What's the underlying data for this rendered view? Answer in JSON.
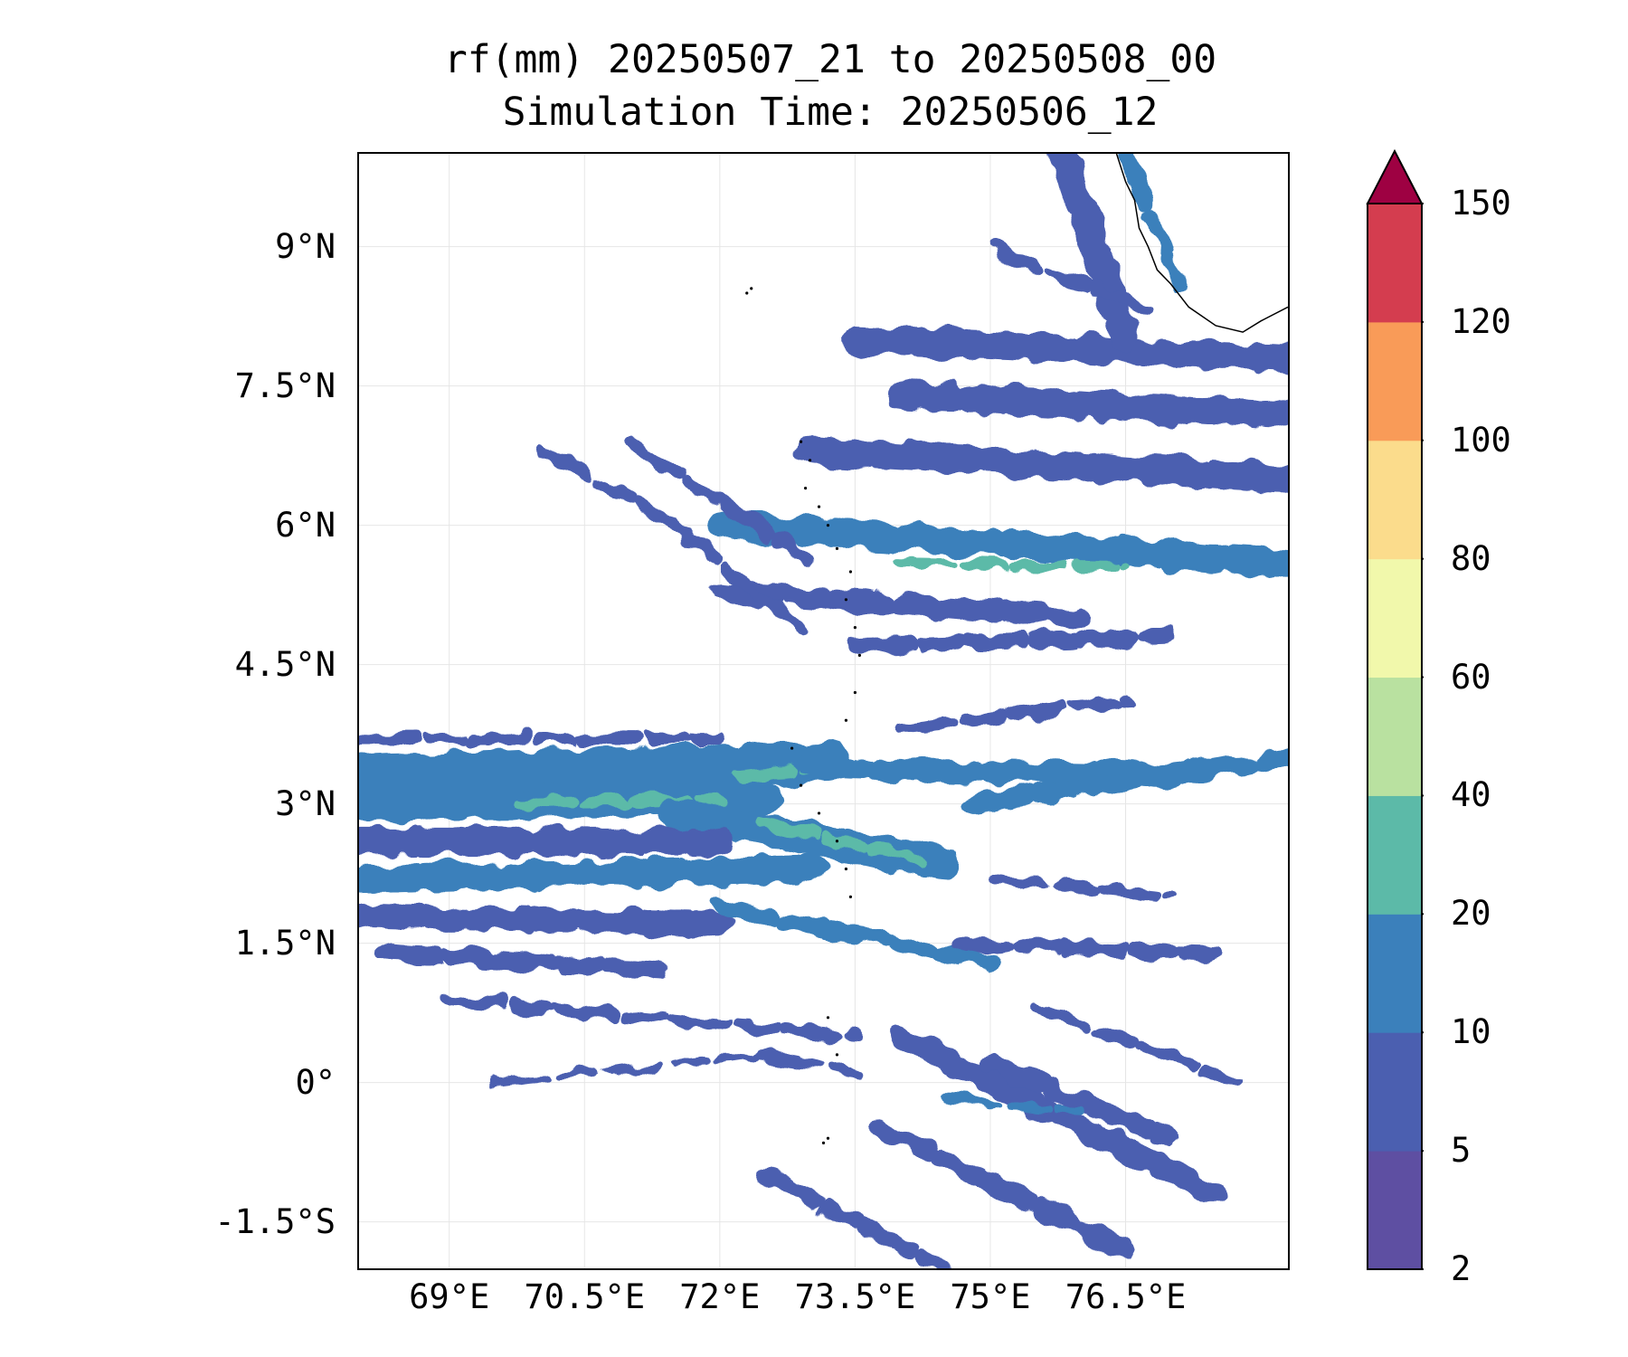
{
  "title": {
    "line1": "rf(mm) 20250507_21 to 20250508_00",
    "line2": "Simulation Time: 20250506_12"
  },
  "map": {
    "extent": {
      "lon_min": 68.0,
      "lon_max": 78.3,
      "lat_min": -2.0,
      "lat_max": 10.0
    },
    "x_ticks": [
      {
        "lon": 69.0,
        "label": "69°E"
      },
      {
        "lon": 70.5,
        "label": "70.5°E"
      },
      {
        "lon": 72.0,
        "label": "72°E"
      },
      {
        "lon": 73.5,
        "label": "73.5°E"
      },
      {
        "lon": 75.0,
        "label": "75°E"
      },
      {
        "lon": 76.5,
        "label": "76.5°E"
      }
    ],
    "y_ticks": [
      {
        "lat": 9.0,
        "label": "9°N"
      },
      {
        "lat": 7.5,
        "label": "7.5°N"
      },
      {
        "lat": 6.0,
        "label": "6°N"
      },
      {
        "lat": 4.5,
        "label": "4.5°N"
      },
      {
        "lat": 3.0,
        "label": "3°N"
      },
      {
        "lat": 1.5,
        "label": "1.5°N"
      },
      {
        "lat": 0.0,
        "label": "0°"
      },
      {
        "lat": -1.5,
        "label": "-1.5°S"
      }
    ],
    "gridlines": true,
    "coastline_color": "#000000",
    "rain_bands": [
      {
        "lon1": 68.0,
        "lat1": 3.3,
        "lon2": 73.2,
        "lat2": 3.45,
        "level": 2,
        "width": 0.45
      },
      {
        "lon1": 68.0,
        "lat1": 3.0,
        "lon2": 72.5,
        "lat2": 3.05,
        "level": 2,
        "width": 0.35
      },
      {
        "lon1": 69.8,
        "lat1": 3.0,
        "lon2": 72.0,
        "lat2": 3.05,
        "level": 3,
        "width": 0.12
      },
      {
        "lon1": 72.2,
        "lat1": 3.3,
        "lon2": 73.8,
        "lat2": 3.4,
        "level": 3,
        "width": 0.12
      },
      {
        "lon1": 71.5,
        "lat1": 2.9,
        "lon2": 74.5,
        "lat2": 2.35,
        "level": 2,
        "width": 0.35
      },
      {
        "lon1": 72.5,
        "lat1": 2.8,
        "lon2": 74.2,
        "lat2": 2.4,
        "level": 3,
        "width": 0.12
      },
      {
        "lon1": 73.0,
        "lat1": 3.4,
        "lon2": 77.0,
        "lat2": 3.3,
        "level": 2,
        "width": 0.25
      },
      {
        "lon1": 74.8,
        "lat1": 3.0,
        "lon2": 78.3,
        "lat2": 3.5,
        "level": 2,
        "width": 0.2
      },
      {
        "lon1": 68.0,
        "lat1": 2.2,
        "lon2": 73.0,
        "lat2": 2.3,
        "level": 2,
        "width": 0.3
      },
      {
        "lon1": 68.0,
        "lat1": 2.6,
        "lon2": 72.0,
        "lat2": 2.6,
        "level": 1,
        "width": 0.3
      },
      {
        "lon1": 68.0,
        "lat1": 1.8,
        "lon2": 72.0,
        "lat2": 1.7,
        "level": 1,
        "width": 0.25
      },
      {
        "lon1": 72.0,
        "lat1": 1.9,
        "lon2": 75.0,
        "lat2": 1.3,
        "level": 2,
        "width": 0.18
      },
      {
        "lon1": 68.3,
        "lat1": 1.4,
        "lon2": 71.5,
        "lat2": 1.2,
        "level": 1,
        "width": 0.18
      },
      {
        "lon1": 69.0,
        "lat1": 0.9,
        "lon2": 73.5,
        "lat2": 0.5,
        "level": 1,
        "width": 0.12
      },
      {
        "lon1": 69.5,
        "lat1": 0.0,
        "lon2": 72.5,
        "lat2": 0.3,
        "level": 1,
        "width": 0.08
      },
      {
        "lon1": 74.6,
        "lat1": 1.5,
        "lon2": 77.5,
        "lat2": 1.4,
        "level": 1,
        "width": 0.15
      },
      {
        "lon1": 75.0,
        "lat1": 2.2,
        "lon2": 77.0,
        "lat2": 2.0,
        "level": 1,
        "width": 0.12
      },
      {
        "lon1": 74.0,
        "lat1": 3.8,
        "lon2": 76.5,
        "lat2": 4.1,
        "level": 1,
        "width": 0.12
      },
      {
        "lon1": 68.0,
        "lat1": 3.7,
        "lon2": 72.0,
        "lat2": 3.7,
        "level": 1,
        "width": 0.12
      },
      {
        "lon1": 72.0,
        "lat1": 6.0,
        "lon2": 78.3,
        "lat2": 5.6,
        "level": 2,
        "width": 0.3
      },
      {
        "lon1": 74.0,
        "lat1": 5.6,
        "lon2": 76.5,
        "lat2": 5.55,
        "level": 3,
        "width": 0.1
      },
      {
        "lon1": 73.0,
        "lat1": 6.8,
        "lon2": 78.3,
        "lat2": 6.5,
        "level": 1,
        "width": 0.3
      },
      {
        "lon1": 74.0,
        "lat1": 7.4,
        "lon2": 78.3,
        "lat2": 7.2,
        "level": 1,
        "width": 0.3
      },
      {
        "lon1": 73.5,
        "lat1": 8.0,
        "lon2": 78.3,
        "lat2": 7.8,
        "level": 1,
        "width": 0.3
      },
      {
        "lon1": 72.0,
        "lat1": 5.3,
        "lon2": 76.0,
        "lat2": 5.0,
        "level": 1,
        "width": 0.22
      },
      {
        "lon1": 73.5,
        "lat1": 4.7,
        "lon2": 77.0,
        "lat2": 4.8,
        "level": 1,
        "width": 0.15
      },
      {
        "lon1": 71.0,
        "lat1": 6.9,
        "lon2": 73.0,
        "lat2": 5.6,
        "level": 1,
        "width": 0.15
      },
      {
        "lon1": 70.0,
        "lat1": 6.8,
        "lon2": 71.5,
        "lat2": 6.0,
        "level": 1,
        "width": 0.12
      },
      {
        "lon1": 71.5,
        "lat1": 6.0,
        "lon2": 73.0,
        "lat2": 4.8,
        "level": 1,
        "width": 0.12
      },
      {
        "lon1": 75.8,
        "lat1": 10.0,
        "lon2": 76.5,
        "lat2": 8.0,
        "level": 1,
        "width": 0.3
      },
      {
        "lon1": 76.5,
        "lat1": 10.0,
        "lon2": 77.1,
        "lat2": 8.6,
        "level": 2,
        "width": 0.15
      },
      {
        "lon1": 75.0,
        "lat1": 9.0,
        "lon2": 76.8,
        "lat2": 8.3,
        "level": 1,
        "width": 0.12
      },
      {
        "lon1": 72.5,
        "lat1": 0.3,
        "lon2": 73.5,
        "lat2": 0.1,
        "level": 1,
        "width": 0.1
      },
      {
        "lon1": 74.0,
        "lat1": 0.5,
        "lon2": 77.5,
        "lat2": -1.2,
        "level": 1,
        "width": 0.25
      },
      {
        "lon1": 75.0,
        "lat1": 0.2,
        "lon2": 77.0,
        "lat2": -0.6,
        "level": 1,
        "width": 0.2
      },
      {
        "lon1": 73.8,
        "lat1": -0.5,
        "lon2": 76.5,
        "lat2": -1.8,
        "level": 1,
        "width": 0.2
      },
      {
        "lon1": 72.5,
        "lat1": -1.0,
        "lon2": 74.5,
        "lat2": -2.0,
        "level": 1,
        "width": 0.15
      },
      {
        "lon1": 75.5,
        "lat1": 0.8,
        "lon2": 77.8,
        "lat2": 0.0,
        "level": 1,
        "width": 0.12
      },
      {
        "lon1": 74.5,
        "lat1": -0.2,
        "lon2": 76.0,
        "lat2": -0.3,
        "level": 2,
        "width": 0.08
      }
    ],
    "coastline": [
      [
        76.4,
        10.0
      ],
      [
        76.5,
        9.7
      ],
      [
        76.6,
        9.5
      ],
      [
        76.65,
        9.2
      ],
      [
        76.75,
        9.0
      ],
      [
        76.85,
        8.75
      ],
      [
        77.0,
        8.6
      ],
      [
        77.2,
        8.35
      ],
      [
        77.5,
        8.15
      ],
      [
        77.8,
        8.08
      ],
      [
        78.0,
        8.2
      ],
      [
        78.3,
        8.35
      ]
    ],
    "islands": [
      [
        72.9,
        6.9
      ],
      [
        73.0,
        6.7
      ],
      [
        72.95,
        6.4
      ],
      [
        73.1,
        6.2
      ],
      [
        73.2,
        6.0
      ],
      [
        73.3,
        5.75
      ],
      [
        73.45,
        5.5
      ],
      [
        73.4,
        5.2
      ],
      [
        73.5,
        4.9
      ],
      [
        73.55,
        4.6
      ],
      [
        73.5,
        4.2
      ],
      [
        73.4,
        3.9
      ],
      [
        72.8,
        3.6
      ],
      [
        72.9,
        3.2
      ],
      [
        73.1,
        2.9
      ],
      [
        73.3,
        2.6
      ],
      [
        73.4,
        2.3
      ],
      [
        73.45,
        2.0
      ],
      [
        73.2,
        0.7
      ],
      [
        73.3,
        0.3
      ],
      [
        73.15,
        -0.65
      ],
      [
        73.2,
        -0.6
      ],
      [
        72.3,
        8.5
      ],
      [
        72.35,
        8.55
      ]
    ]
  },
  "colorbar": {
    "levels": [
      "2",
      "5",
      "10",
      "20",
      "40",
      "60",
      "80",
      "100",
      "120",
      "150"
    ],
    "colors": [
      "#5e4fa2",
      "#4b5fb0",
      "#3b80bb",
      "#5cbaa8",
      "#b9e1a0",
      "#f1f8ab",
      "#fbdc8c",
      "#f99b58",
      "#d43d4f"
    ],
    "extend_color": "#9e0142"
  }
}
